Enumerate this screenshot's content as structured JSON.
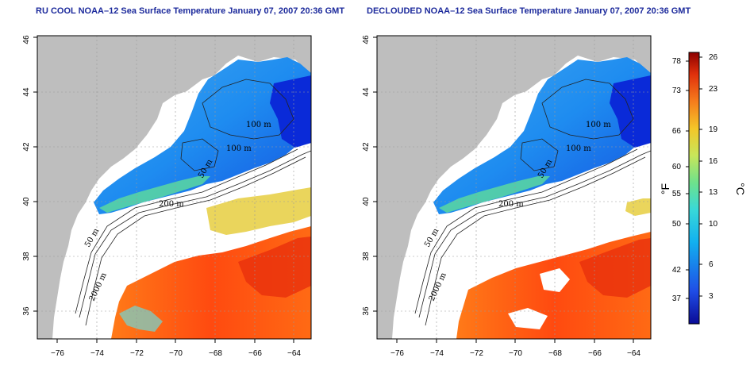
{
  "panels": [
    {
      "title": "RU COOL NOAA–12 Sea Surface Temperature January 07, 2007 20:36 GMT",
      "contour_labels": [
        "100 m",
        "100 m",
        "50 m",
        "200 m",
        "50 m",
        "2000 m"
      ]
    },
    {
      "title": "DECLOUDED NOAA–12 Sea Surface Temperature January 07, 2007 20:36 GMT",
      "contour_labels": [
        "100 m",
        "100 m",
        "50 m",
        "200 m",
        "50 m",
        "2000 m"
      ]
    }
  ],
  "axes": {
    "x_ticks": [
      "−76",
      "−74",
      "−72",
      "−70",
      "−68",
      "−66",
      "−64"
    ],
    "y_ticks": [
      "36",
      "38",
      "40",
      "42",
      "44",
      "46"
    ]
  },
  "colorbar": {
    "fahrenheit_label": "°F",
    "celsius_label": "°C",
    "fahrenheit_ticks": [
      "78",
      "73",
      "66",
      "60",
      "55",
      "50",
      "42",
      "37"
    ],
    "celsius_ticks": [
      "26",
      "23",
      "19",
      "16",
      "13",
      "10",
      "6",
      "3"
    ]
  },
  "colors": {
    "land": "#bebebe",
    "cloud": "#ffffff",
    "cold": "#0a1aa8",
    "warm": "#ff5a10",
    "title": "#1c2a9c"
  }
}
